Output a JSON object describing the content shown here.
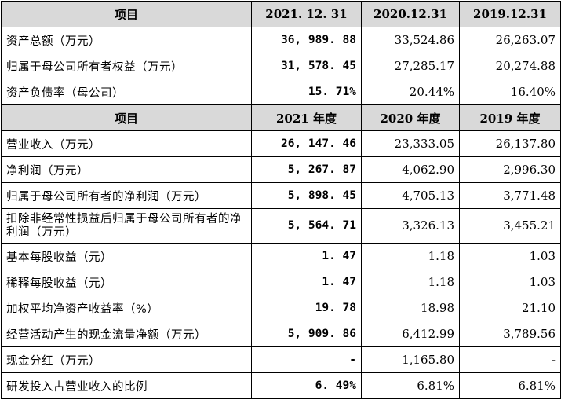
{
  "header1": {
    "item": "项目",
    "c1": "2021. 12. 31",
    "c2": "2020.12.31",
    "c3": "2019.12.31"
  },
  "header2": {
    "item": "项目",
    "c1": "2021 年度",
    "c2": "2020 年度",
    "c3": "2019 年度"
  },
  "rows1": [
    {
      "label": "资产总额（万元）",
      "v1": "36, 989. 88",
      "v2": "33,524.86",
      "v3": "26,263.07"
    },
    {
      "label": "归属于母公司所有者权益（万元）",
      "v1": "31, 578. 45",
      "v2": "27,285.17",
      "v3": "20,274.88"
    },
    {
      "label": "资产负债率（母公司）",
      "v1": "15. 71%",
      "v2": "20.44%",
      "v3": "16.40%"
    }
  ],
  "rows2": [
    {
      "label": "营业收入（万元）",
      "v1": "26, 147. 46",
      "v2": "23,333.05",
      "v3": "26,137.80"
    },
    {
      "label": "净利润（万元）",
      "v1": "5, 267. 87",
      "v2": "4,062.90",
      "v3": "2,996.30"
    },
    {
      "label": "归属于母公司所有者的净利润（万元）",
      "v1": "5, 898. 45",
      "v2": "4,705.13",
      "v3": "3,771.48"
    },
    {
      "label": "扣除非经常性损益后归属于母公司所有者的净利润（万元）",
      "v1": "5, 564. 71",
      "v2": "3,326.13",
      "v3": "3,455.21"
    },
    {
      "label": "基本每股收益（元）",
      "v1": "1. 47",
      "v2": "1.18",
      "v3": "1.03"
    },
    {
      "label": "稀释每股收益（元）",
      "v1": "1. 47",
      "v2": "1.18",
      "v3": "1.03"
    },
    {
      "label": "加权平均净资产收益率（%）",
      "v1": "19. 78",
      "v2": "18.98",
      "v3": "21.10"
    },
    {
      "label": "经营活动产生的现金流量净额（万元）",
      "v1": "5, 909. 86",
      "v2": "6,412.99",
      "v3": "3,789.56"
    },
    {
      "label": "现金分红（万元）",
      "v1": "-",
      "v2": "1,165.80",
      "v3": "-"
    },
    {
      "label": "研发投入占营业收入的比例",
      "v1": "6. 49%",
      "v2": "6.81%",
      "v3": "6.81%"
    }
  ]
}
